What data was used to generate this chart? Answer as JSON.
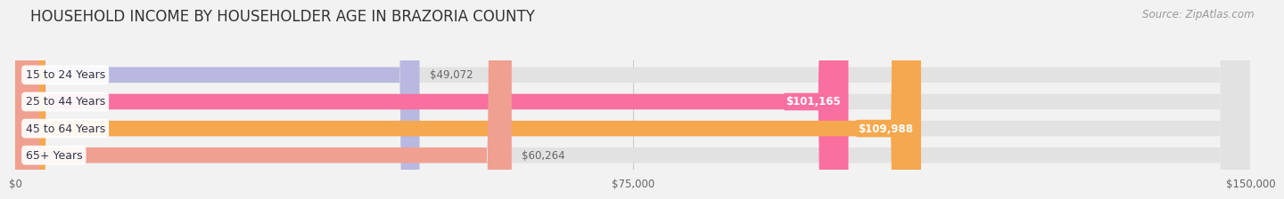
{
  "title": "HOUSEHOLD INCOME BY HOUSEHOLDER AGE IN BRAZORIA COUNTY",
  "source": "Source: ZipAtlas.com",
  "categories": [
    "15 to 24 Years",
    "25 to 44 Years",
    "45 to 64 Years",
    "65+ Years"
  ],
  "values": [
    49072,
    101165,
    109988,
    60264
  ],
  "bar_colors": [
    "#b8b8e0",
    "#f96fa0",
    "#f5a84e",
    "#f0a090"
  ],
  "value_labels": [
    "$49,072",
    "$101,165",
    "$109,988",
    "$60,264"
  ],
  "value_label_inside": [
    false,
    true,
    true,
    false
  ],
  "value_label_text_colors_inside": [
    "#ffffff",
    "#ffffff"
  ],
  "xlim": [
    0,
    150000
  ],
  "xticks": [
    0,
    75000,
    150000
  ],
  "xtick_labels": [
    "$0",
    "$75,000",
    "$150,000"
  ],
  "background_color": "#f2f2f2",
  "bar_bg_color": "#e2e2e2",
  "title_fontsize": 12,
  "source_fontsize": 8.5,
  "bar_height": 0.58
}
